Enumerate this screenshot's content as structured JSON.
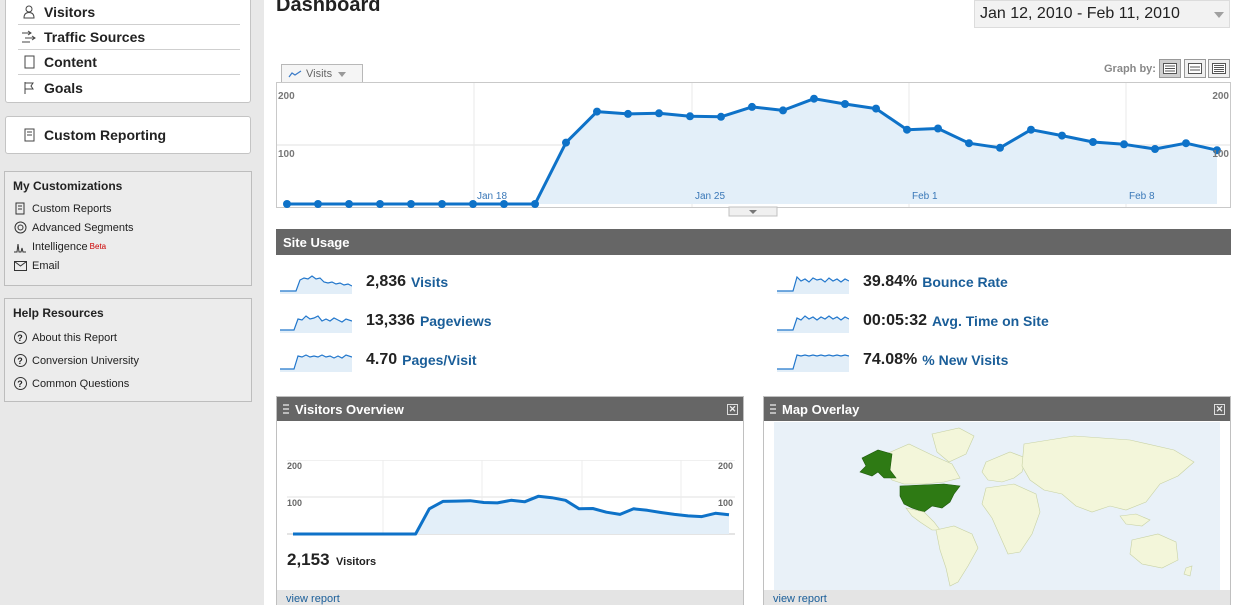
{
  "sidebar": {
    "nav": [
      {
        "label": "Visitors",
        "icon": "person-icon"
      },
      {
        "label": "Traffic Sources",
        "icon": "traffic-sources-icon"
      },
      {
        "label": "Content",
        "icon": "page-icon"
      },
      {
        "label": "Goals",
        "icon": "flag-icon"
      }
    ],
    "custom_reporting": "Custom Reporting",
    "my_customizations": {
      "title": "My Customizations",
      "items": [
        "Custom Reports",
        "Advanced Segments",
        "Intelligence",
        "Email"
      ],
      "beta": "Beta"
    },
    "help": {
      "title": "Help Resources",
      "items": [
        "About this Report",
        "Conversion University",
        "Common Questions"
      ]
    }
  },
  "header": {
    "title": "Dashboard",
    "date_range": "Jan 12, 2010 - Feb 11, 2010"
  },
  "main_chart": {
    "tab_label": "Visits",
    "graph_by": "Graph by:",
    "x_labels": [
      "Jan 18",
      "Jan 25",
      "Feb 1",
      "Feb 8"
    ],
    "y_labels": [
      "200",
      "100"
    ],
    "right_y_labels": [
      "200",
      "100"
    ]
  },
  "chart_data": [
    {
      "type": "line",
      "series": [
        {
          "values": [
            0,
            0,
            0,
            0,
            0,
            0,
            0,
            0,
            0,
            105,
            158,
            154,
            155,
            150,
            149,
            166,
            160,
            180,
            171,
            163,
            127,
            129,
            104,
            96,
            127,
            117,
            106,
            102,
            94,
            104,
            92
          ]
        }
      ],
      "ylim": [
        0,
        200
      ],
      "color": "#0e72c8"
    },
    {
      "type": "area",
      "series": [
        {
          "values": [
            0,
            0,
            0,
            0,
            0,
            0,
            0,
            0,
            0,
            0,
            68,
            88,
            89,
            90,
            85,
            84,
            91,
            87,
            102,
            98,
            91,
            68,
            69,
            59,
            53,
            68,
            64,
            58,
            53,
            49,
            47,
            56,
            52
          ]
        }
      ],
      "ylim": [
        0,
        200
      ],
      "color": "#0e72c8"
    }
  ],
  "site_usage": {
    "title": "Site Usage",
    "metrics": [
      {
        "value": "2,836",
        "label": "Visits"
      },
      {
        "value": "13,336",
        "label": "Pageviews"
      },
      {
        "value": "4.70",
        "label": "Pages/Visit"
      },
      {
        "value": "39.84%",
        "label": "Bounce Rate"
      },
      {
        "value": "00:05:32",
        "label": "Avg. Time on Site"
      },
      {
        "value": "74.08%",
        "label": "% New Visits"
      }
    ]
  },
  "visitors_overview": {
    "title": "Visitors Overview",
    "y_labels": [
      "200",
      "100"
    ],
    "right_y_labels": [
      "200",
      "100"
    ],
    "count": "2,153",
    "count_label": "Visitors",
    "view_report": "view report"
  },
  "map_overlay": {
    "title": "Map Overlay",
    "view_report": "view report"
  }
}
